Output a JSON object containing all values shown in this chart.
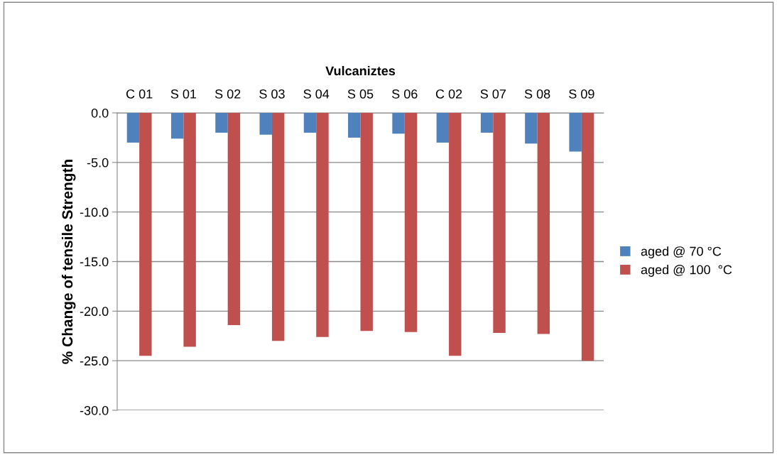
{
  "chart_data": {
    "type": "bar",
    "xlabel": "Vulcaniztes",
    "ylabel": "% Change of tensile Strength",
    "categories": [
      "C 01",
      "S 01",
      "S 02",
      "S 03",
      "S 04",
      "S 05",
      "S 06",
      "C 02",
      "S 07",
      "S 08",
      "S 09"
    ],
    "series": [
      {
        "name": "aged @ 70 °C",
        "color": "#4f81bd",
        "values": [
          -3.0,
          -2.6,
          -2.0,
          -2.2,
          -2.0,
          -2.5,
          -2.1,
          -3.0,
          -2.0,
          -3.1,
          -3.9
        ]
      },
      {
        "name": "aged @ 100  °C",
        "color": "#c0504d",
        "values": [
          -24.5,
          -23.6,
          -21.4,
          -23.0,
          -22.6,
          -22.0,
          -22.1,
          -24.5,
          -22.2,
          -22.3,
          -25.0
        ]
      }
    ],
    "ylim": [
      -30,
      0
    ],
    "yticks": [
      {
        "value": -30,
        "label": "-30.0"
      },
      {
        "value": -25,
        "label": "-25.0"
      },
      {
        "value": -20,
        "label": "-20.0"
      },
      {
        "value": -15,
        "label": "-15.0"
      },
      {
        "value": -10,
        "label": "-10.0"
      },
      {
        "value": -5,
        "label": "-5.0"
      },
      {
        "value": 0,
        "label": "0.0"
      }
    ],
    "grid": "y",
    "legend": "right"
  }
}
